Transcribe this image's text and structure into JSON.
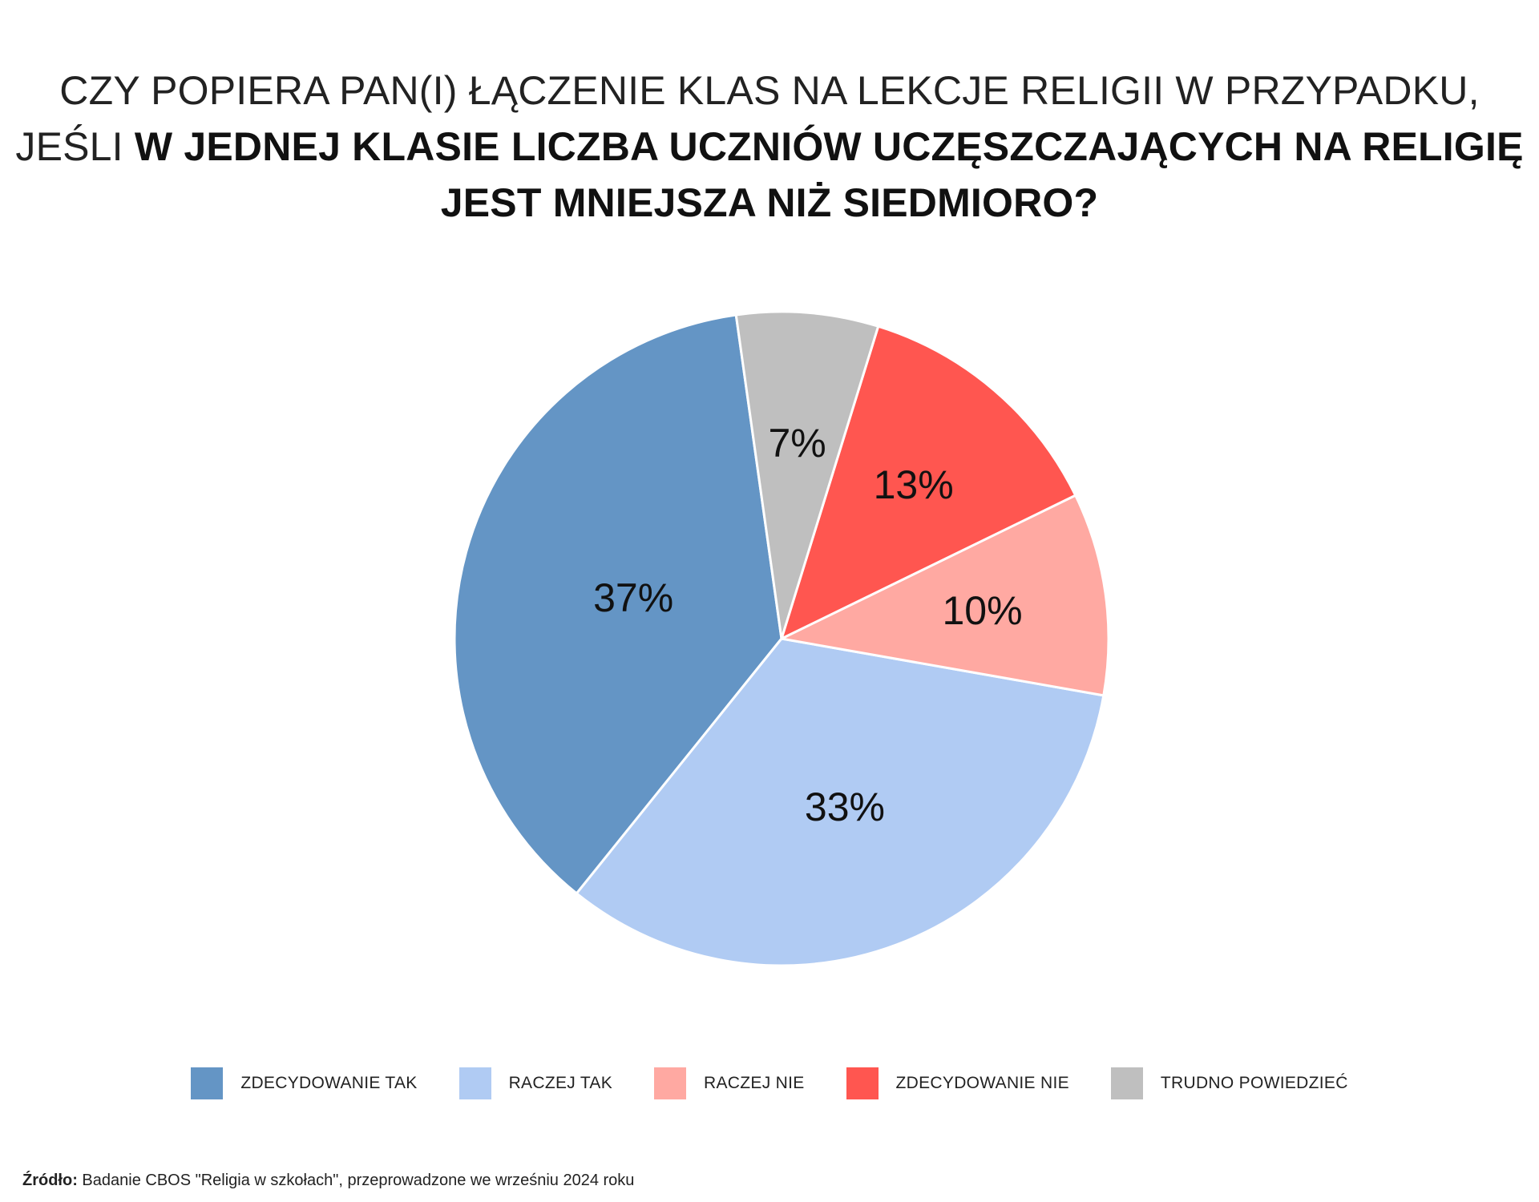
{
  "title": {
    "line1": "CZY POPIERA PAN(I) ŁĄCZENIE KLAS NA LEKCJE RELIGII W PRZYPADKU,",
    "line2_prefix": "JEŚLI ",
    "line2_bold": "W JEDNEJ KLASIE LICZBA UCZNIÓW UCZĘSZCZAJĄCYCH NA RELIGIĘ",
    "line3_bold": "JEST MNIEJSZA NIŻ SIEDMIORO?"
  },
  "chart_data": {
    "type": "pie",
    "categories": [
      "ZDECYDOWANIE TAK",
      "RACZEJ TAK",
      "RACZEJ NIE",
      "ZDECYDOWANIE NIE",
      "TRUDNO POWIEDZIEĆ"
    ],
    "values": [
      37,
      33,
      10,
      13,
      7
    ],
    "labels": [
      "37%",
      "33%",
      "10%",
      "13%",
      "7%"
    ],
    "colors": [
      "#6495C5",
      "#B0CBF3",
      "#FFA9A2",
      "#FF5650",
      "#BFBFBF"
    ],
    "legend_position": "bottom"
  },
  "legend": [
    {
      "label": "ZDECYDOWANIE TAK",
      "color": "#6495C5"
    },
    {
      "label": "RACZEJ TAK",
      "color": "#B0CBF3"
    },
    {
      "label": "RACZEJ NIE",
      "color": "#FFA9A2"
    },
    {
      "label": "ZDECYDOWANIE NIE",
      "color": "#FF5650"
    },
    {
      "label": "TRUDNO POWIEDZIEĆ",
      "color": "#BFBFBF"
    }
  ],
  "source": {
    "label": "Źródło:",
    "text": " Badanie CBOS \"Religia w szkołach\", przeprowadzone we wrześniu 2024 roku"
  }
}
